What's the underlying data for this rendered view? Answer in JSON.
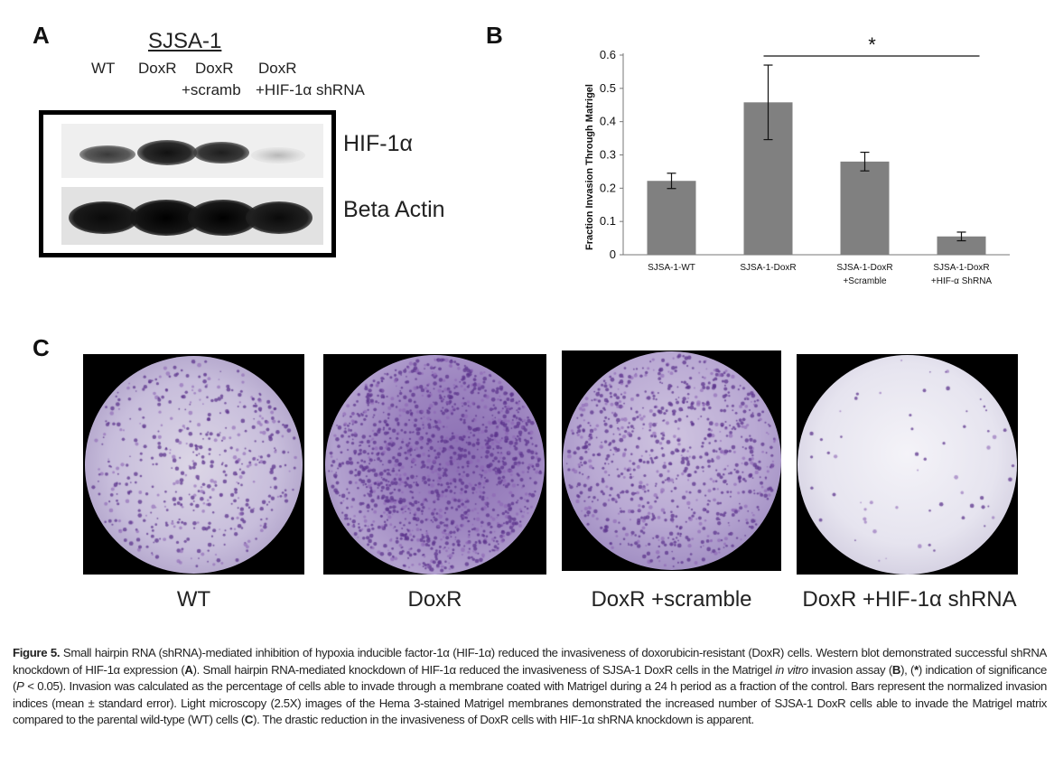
{
  "panel_a": {
    "letter": "A",
    "cell_line": "SJSA-1",
    "lanes": [
      {
        "line1": "WT",
        "line2": ""
      },
      {
        "line1": "DoxR",
        "line2": ""
      },
      {
        "line1": "DoxR",
        "line2": "+scramb"
      },
      {
        "line1": "DoxR",
        "line2": "+HIF-1α shRNA"
      }
    ],
    "blot_labels": [
      "HIF-1α",
      "Beta Actin"
    ]
  },
  "panel_b": {
    "letter": "B",
    "significance_marker": "*"
  },
  "chart_data": {
    "type": "bar",
    "title": "",
    "xlabel": "",
    "ylabel": "Fraction Invasion Through Matrigel",
    "ylim": [
      0,
      0.6
    ],
    "yticks": [
      "0",
      "0.1",
      "0.2",
      "0.3",
      "0.4",
      "0.5",
      "0.6"
    ],
    "categories": [
      [
        "SJSA-1-WT"
      ],
      [
        "SJSA-1-DoxR"
      ],
      [
        "SJSA-1-DoxR",
        "+Scramble"
      ],
      [
        "SJSA-1-DoxR",
        "+HIF-α ShRNA"
      ]
    ],
    "values": [
      0.222,
      0.458,
      0.28,
      0.055
    ],
    "errors": [
      0.023,
      0.112,
      0.028,
      0.013
    ],
    "bar_color": "#808080",
    "grid": false,
    "annotation": {
      "text": "*",
      "from_category": 1,
      "to_category": 3
    }
  },
  "panel_c": {
    "letter": "C",
    "images": [
      {
        "label": "WT"
      },
      {
        "label": "DoxR"
      },
      {
        "label": "DoxR +scramble"
      },
      {
        "label": "DoxR +HIF-1α shRNA"
      }
    ]
  },
  "caption": {
    "fig_label": "Figure 5.",
    "text_1": " Small hairpin RNA (shRNA)-mediated inhibition of hypoxia inducible factor-1α (HIF-1α) reduced the invasiveness of doxorubicin-resistant (DoxR) cells. Western blot demonstrated successful shRNA knockdown of HIF-1α expression (",
    "ref_a": "A",
    "text_2": "). Small hairpin RNA-mediated knockdown of HIF-1α reduced the invasiveness of SJSA-1 DoxR cells in the Matrigel ",
    "in_vitro": "in vitro",
    "text_3": " invasion assay (",
    "ref_b": "B",
    "text_4": "), (",
    "star": "*",
    "text_5": ") indication of significance (",
    "p": "P",
    "text_6": " < 0.05). Invasion was calculated as the percentage of cells able to invade through a membrane coated with Matrigel during a 24 h period as a fraction of the control. Bars represent the normalized invasion indices (mean ± standard error). Light microscopy (2.5X) images of the Hema 3-stained Matrigel membranes demonstrated the increased number of  SJSA-1 DoxR cells able to invade the Matrigel matrix compared to the parental wild-type (WT) cells (",
    "ref_c": "C",
    "text_7": "). The drastic reduction in the invasiveness of DoxR cells with HIF-1α shRNA knockdown is apparent."
  }
}
